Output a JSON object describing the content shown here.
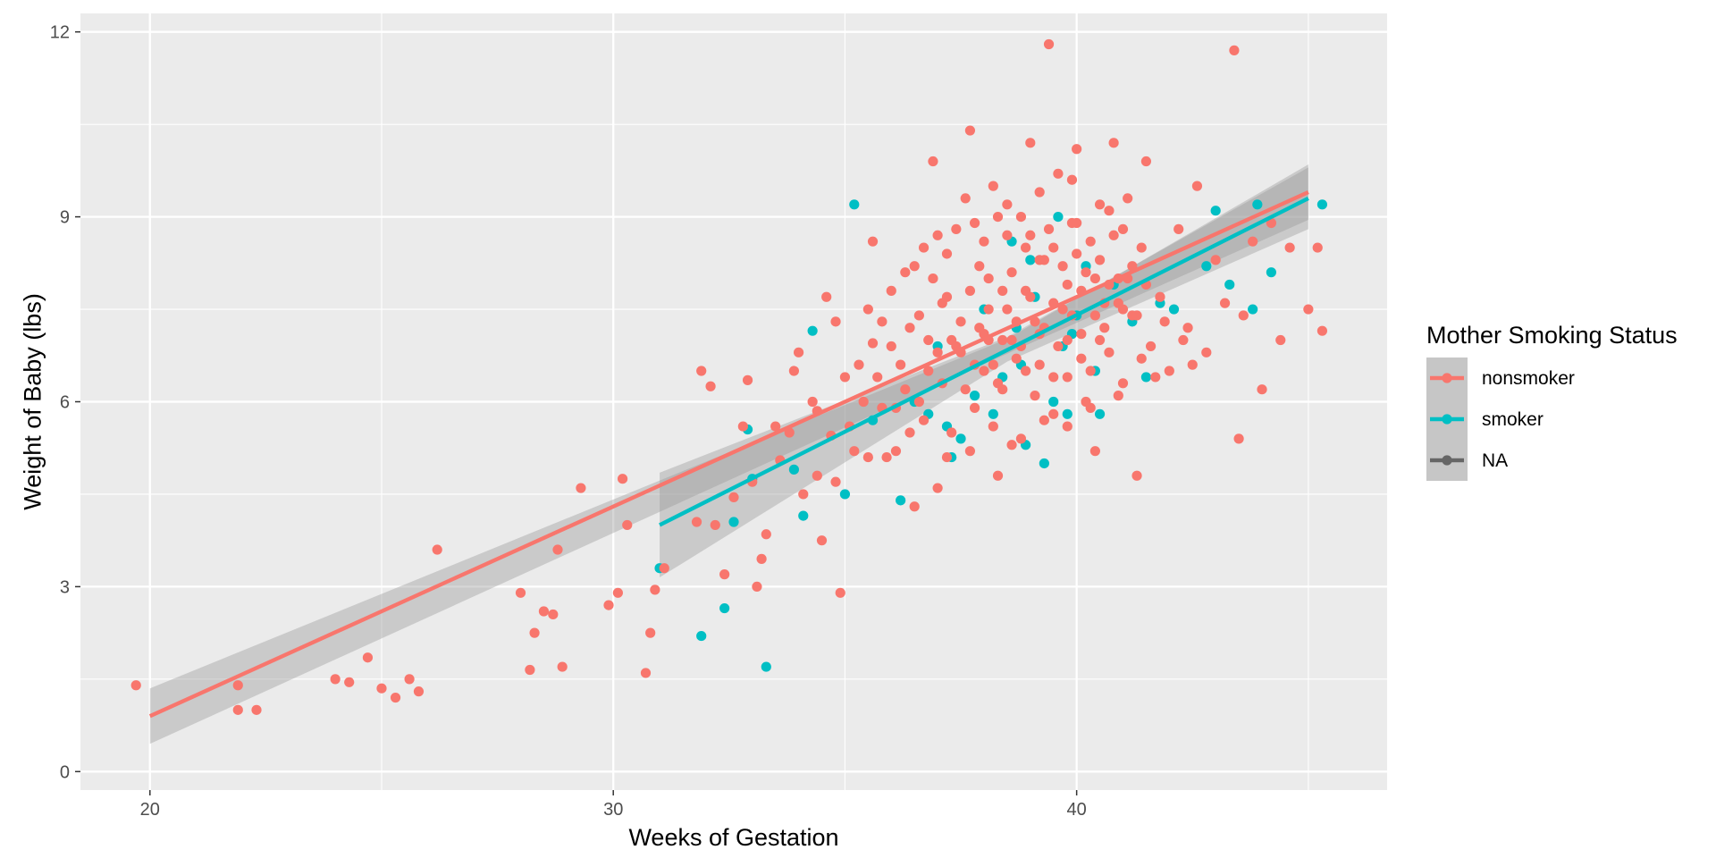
{
  "chart_data": {
    "type": "scatter",
    "xlabel": "Weeks of Gestation",
    "ylabel": "Weight of Baby (lbs)",
    "xlim": [
      18.5,
      46.7
    ],
    "ylim": [
      -0.3,
      12.3
    ],
    "x_ticks": [
      20,
      30,
      40
    ],
    "y_ticks": [
      0,
      3,
      6,
      9,
      12
    ],
    "grid": true,
    "legend_position": "right",
    "legend": {
      "title": "Mother Smoking Status",
      "entries": [
        {
          "label": "nonsmoker",
          "color": "#F8766D"
        },
        {
          "label": "smoker",
          "color": "#00BFC4"
        },
        {
          "label": "NA",
          "color": "#666666"
        }
      ]
    },
    "series": [
      {
        "name": "nonsmoker",
        "color": "#F8766D",
        "fit": {
          "x": [
            20,
            45
          ],
          "y": [
            0.9,
            9.4
          ],
          "band_low": [
            0.45,
            8.95
          ],
          "band_high": [
            1.35,
            9.85
          ],
          "band_mid": [
            38.5,
            6.9
          ],
          "band_mid_half": 0.12
        },
        "points": [
          [
            19.7,
            1.4
          ],
          [
            21.9,
            1.0
          ],
          [
            22.3,
            1.0
          ],
          [
            21.9,
            1.4
          ],
          [
            24.0,
            1.5
          ],
          [
            24.3,
            1.45
          ],
          [
            24.7,
            1.85
          ],
          [
            25.0,
            1.35
          ],
          [
            25.3,
            1.2
          ],
          [
            25.6,
            1.5
          ],
          [
            25.8,
            1.3
          ],
          [
            26.2,
            3.6
          ],
          [
            28.0,
            2.9
          ],
          [
            28.2,
            1.65
          ],
          [
            28.3,
            2.25
          ],
          [
            28.5,
            2.6
          ],
          [
            28.7,
            2.55
          ],
          [
            28.8,
            3.6
          ],
          [
            28.9,
            1.7
          ],
          [
            29.3,
            4.6
          ],
          [
            29.9,
            2.7
          ],
          [
            30.1,
            2.9
          ],
          [
            30.2,
            4.75
          ],
          [
            30.3,
            4.0
          ],
          [
            30.7,
            1.6
          ],
          [
            30.8,
            2.25
          ],
          [
            30.9,
            2.95
          ],
          [
            31.1,
            3.3
          ],
          [
            31.8,
            4.05
          ],
          [
            31.9,
            6.5
          ],
          [
            32.1,
            6.25
          ],
          [
            32.2,
            4.0
          ],
          [
            32.4,
            3.2
          ],
          [
            32.6,
            4.45
          ],
          [
            32.8,
            5.6
          ],
          [
            32.9,
            6.35
          ],
          [
            33.0,
            4.7
          ],
          [
            33.1,
            3.0
          ],
          [
            33.2,
            3.45
          ],
          [
            33.3,
            3.85
          ],
          [
            33.5,
            5.6
          ],
          [
            33.6,
            5.05
          ],
          [
            33.9,
            6.5
          ],
          [
            34.1,
            4.5
          ],
          [
            34.3,
            6.0
          ],
          [
            34.4,
            5.85
          ],
          [
            34.5,
            3.75
          ],
          [
            34.6,
            7.7
          ],
          [
            34.7,
            5.45
          ],
          [
            34.8,
            4.7
          ],
          [
            34.9,
            2.9
          ],
          [
            35.2,
            5.2
          ],
          [
            35.3,
            6.6
          ],
          [
            35.4,
            6.0
          ],
          [
            35.5,
            7.5
          ],
          [
            35.6,
            6.95
          ],
          [
            35.7,
            6.4
          ],
          [
            35.8,
            7.3
          ],
          [
            35.9,
            5.1
          ],
          [
            36.0,
            7.8
          ],
          [
            36.1,
            5.9
          ],
          [
            36.2,
            6.6
          ],
          [
            36.3,
            8.1
          ],
          [
            36.4,
            7.2
          ],
          [
            36.5,
            4.3
          ],
          [
            36.6,
            6.0
          ],
          [
            36.7,
            8.5
          ],
          [
            36.8,
            7.0
          ],
          [
            36.9,
            9.9
          ],
          [
            37.0,
            4.6
          ],
          [
            37.1,
            6.3
          ],
          [
            37.2,
            7.7
          ],
          [
            37.3,
            5.5
          ],
          [
            37.4,
            8.8
          ],
          [
            37.5,
            6.8
          ],
          [
            37.6,
            9.3
          ],
          [
            37.7,
            10.4
          ],
          [
            37.8,
            5.9
          ],
          [
            37.9,
            8.2
          ],
          [
            38.0,
            6.5
          ],
          [
            38.1,
            7.5
          ],
          [
            38.2,
            9.5
          ],
          [
            38.3,
            4.8
          ],
          [
            38.4,
            7.0
          ],
          [
            38.5,
            8.7
          ],
          [
            38.6,
            5.3
          ],
          [
            38.7,
            6.7
          ],
          [
            38.8,
            9.0
          ],
          [
            38.9,
            7.8
          ],
          [
            39.0,
            10.2
          ],
          [
            39.1,
            6.1
          ],
          [
            39.2,
            8.3
          ],
          [
            39.3,
            7.2
          ],
          [
            39.4,
            11.8
          ],
          [
            39.5,
            5.8
          ],
          [
            39.6,
            9.7
          ],
          [
            39.7,
            7.5
          ],
          [
            39.8,
            6.4
          ],
          [
            39.9,
            8.9
          ],
          [
            40.0,
            10.1
          ],
          [
            40.1,
            7.1
          ],
          [
            40.2,
            6.0
          ],
          [
            40.3,
            8.6
          ],
          [
            40.4,
            5.2
          ],
          [
            40.5,
            9.2
          ],
          [
            40.6,
            7.6
          ],
          [
            40.7,
            6.8
          ],
          [
            40.8,
            10.2
          ],
          [
            40.9,
            8.0
          ],
          [
            41.0,
            6.3
          ],
          [
            41.1,
            9.3
          ],
          [
            41.2,
            7.4
          ],
          [
            41.3,
            4.8
          ],
          [
            41.4,
            8.5
          ],
          [
            41.6,
            6.9
          ],
          [
            41.8,
            7.7
          ],
          [
            42.0,
            6.5
          ],
          [
            42.2,
            8.8
          ],
          [
            42.4,
            7.2
          ],
          [
            42.6,
            9.5
          ],
          [
            42.8,
            6.8
          ],
          [
            43.0,
            8.3
          ],
          [
            43.2,
            7.6
          ],
          [
            43.4,
            11.7
          ],
          [
            43.5,
            5.4
          ],
          [
            43.6,
            7.4
          ],
          [
            43.8,
            8.6
          ],
          [
            44.0,
            6.2
          ],
          [
            44.2,
            8.9
          ],
          [
            44.4,
            7.0
          ],
          [
            44.6,
            8.5
          ],
          [
            45.0,
            7.5
          ],
          [
            45.2,
            8.5
          ],
          [
            45.3,
            7.15
          ],
          [
            34.0,
            6.8
          ],
          [
            34.8,
            7.3
          ],
          [
            35.1,
            5.6
          ],
          [
            35.6,
            8.6
          ],
          [
            36.4,
            5.5
          ],
          [
            36.9,
            8.0
          ],
          [
            37.3,
            7.0
          ],
          [
            37.6,
            6.2
          ],
          [
            37.9,
            7.2
          ],
          [
            38.1,
            8.0
          ],
          [
            38.3,
            6.3
          ],
          [
            38.5,
            7.5
          ],
          [
            38.6,
            8.1
          ],
          [
            38.8,
            6.9
          ],
          [
            38.9,
            8.5
          ],
          [
            39.1,
            7.3
          ],
          [
            39.2,
            6.6
          ],
          [
            39.4,
            8.8
          ],
          [
            39.5,
            7.6
          ],
          [
            39.7,
            8.2
          ],
          [
            39.8,
            7.0
          ],
          [
            40.0,
            8.4
          ],
          [
            40.1,
            7.8
          ],
          [
            40.3,
            6.5
          ],
          [
            40.4,
            8.0
          ],
          [
            40.6,
            7.2
          ],
          [
            40.8,
            8.7
          ],
          [
            41.0,
            7.5
          ],
          [
            41.2,
            8.2
          ],
          [
            41.5,
            7.9
          ],
          [
            41.9,
            7.3
          ],
          [
            42.3,
            7.0
          ],
          [
            36.0,
            6.9
          ],
          [
            36.8,
            6.5
          ],
          [
            37.1,
            7.6
          ],
          [
            37.4,
            6.9
          ],
          [
            37.7,
            7.8
          ],
          [
            38.0,
            7.1
          ],
          [
            38.2,
            6.6
          ],
          [
            38.4,
            7.8
          ],
          [
            38.7,
            7.3
          ],
          [
            39.0,
            7.7
          ],
          [
            39.3,
            8.3
          ],
          [
            39.6,
            6.9
          ],
          [
            39.9,
            7.4
          ],
          [
            40.2,
            8.1
          ],
          [
            40.5,
            7.0
          ],
          [
            40.9,
            7.6
          ],
          [
            41.3,
            7.4
          ],
          [
            35.8,
            5.9
          ],
          [
            36.3,
            6.2
          ],
          [
            36.6,
            7.4
          ],
          [
            37.0,
            6.8
          ],
          [
            37.5,
            7.3
          ],
          [
            37.8,
            6.6
          ],
          [
            38.1,
            7.0
          ],
          [
            38.4,
            6.2
          ],
          [
            38.6,
            7.0
          ],
          [
            38.9,
            6.5
          ],
          [
            39.2,
            7.1
          ],
          [
            39.5,
            6.4
          ],
          [
            39.8,
            7.9
          ],
          [
            40.1,
            6.7
          ],
          [
            40.4,
            7.4
          ],
          [
            40.7,
            7.9
          ],
          [
            41.1,
            8.0
          ],
          [
            41.4,
            6.7
          ],
          [
            37.2,
            8.4
          ],
          [
            38.0,
            8.6
          ],
          [
            38.5,
            9.2
          ],
          [
            39.0,
            8.7
          ],
          [
            39.5,
            8.5
          ],
          [
            40.0,
            8.9
          ],
          [
            40.5,
            8.3
          ],
          [
            41.0,
            8.8
          ],
          [
            38.3,
            9.0
          ],
          [
            39.2,
            9.4
          ],
          [
            39.9,
            9.6
          ],
          [
            40.7,
            9.1
          ],
          [
            41.5,
            9.9
          ],
          [
            36.5,
            8.2
          ],
          [
            37.0,
            8.7
          ],
          [
            37.8,
            8.9
          ],
          [
            33.8,
            5.5
          ],
          [
            34.4,
            4.8
          ],
          [
            35.0,
            6.4
          ],
          [
            35.5,
            5.1
          ],
          [
            36.1,
            5.2
          ],
          [
            36.7,
            5.7
          ],
          [
            37.2,
            5.1
          ],
          [
            37.7,
            5.2
          ],
          [
            38.2,
            5.6
          ],
          [
            38.8,
            5.4
          ],
          [
            39.3,
            5.7
          ],
          [
            39.8,
            5.6
          ],
          [
            40.3,
            5.9
          ],
          [
            40.9,
            6.1
          ],
          [
            41.7,
            6.4
          ],
          [
            42.5,
            6.6
          ]
        ]
      },
      {
        "name": "smoker",
        "color": "#00BFC4",
        "fit": {
          "x": [
            31,
            45
          ],
          "y": [
            4.0,
            9.3
          ],
          "band_low": [
            3.15,
            8.8
          ],
          "band_high": [
            4.85,
            9.8
          ],
          "band_mid": [
            38.5,
            6.85
          ],
          "band_mid_half": 0.2
        },
        "points": [
          [
            31.0,
            3.3
          ],
          [
            31.9,
            2.2
          ],
          [
            32.4,
            2.65
          ],
          [
            32.6,
            4.05
          ],
          [
            32.9,
            5.55
          ],
          [
            33.0,
            4.75
          ],
          [
            33.3,
            1.7
          ],
          [
            33.9,
            4.9
          ],
          [
            34.1,
            4.15
          ],
          [
            34.3,
            7.15
          ],
          [
            35.0,
            4.5
          ],
          [
            35.2,
            9.2
          ],
          [
            35.6,
            5.7
          ],
          [
            36.2,
            4.4
          ],
          [
            36.5,
            6.0
          ],
          [
            37.0,
            6.9
          ],
          [
            37.2,
            5.6
          ],
          [
            37.3,
            5.1
          ],
          [
            37.8,
            6.1
          ],
          [
            38.0,
            7.5
          ],
          [
            38.2,
            5.8
          ],
          [
            38.4,
            6.4
          ],
          [
            38.6,
            8.6
          ],
          [
            38.7,
            7.2
          ],
          [
            38.9,
            5.3
          ],
          [
            39.0,
            8.3
          ],
          [
            39.1,
            7.7
          ],
          [
            39.3,
            5.0
          ],
          [
            39.5,
            6.0
          ],
          [
            39.6,
            9.0
          ],
          [
            39.7,
            6.9
          ],
          [
            39.8,
            5.8
          ],
          [
            40.0,
            7.4
          ],
          [
            40.2,
            8.2
          ],
          [
            40.4,
            6.5
          ],
          [
            40.8,
            7.9
          ],
          [
            41.2,
            7.3
          ],
          [
            41.5,
            6.4
          ],
          [
            41.8,
            7.6
          ],
          [
            42.1,
            7.5
          ],
          [
            42.8,
            8.2
          ],
          [
            43.0,
            9.1
          ],
          [
            43.3,
            7.9
          ],
          [
            43.8,
            7.5
          ],
          [
            43.9,
            9.2
          ],
          [
            44.2,
            8.1
          ],
          [
            45.3,
            9.2
          ],
          [
            37.5,
            5.4
          ],
          [
            38.8,
            6.6
          ],
          [
            39.9,
            7.1
          ],
          [
            40.5,
            5.8
          ],
          [
            36.8,
            5.8
          ]
        ]
      }
    ]
  }
}
